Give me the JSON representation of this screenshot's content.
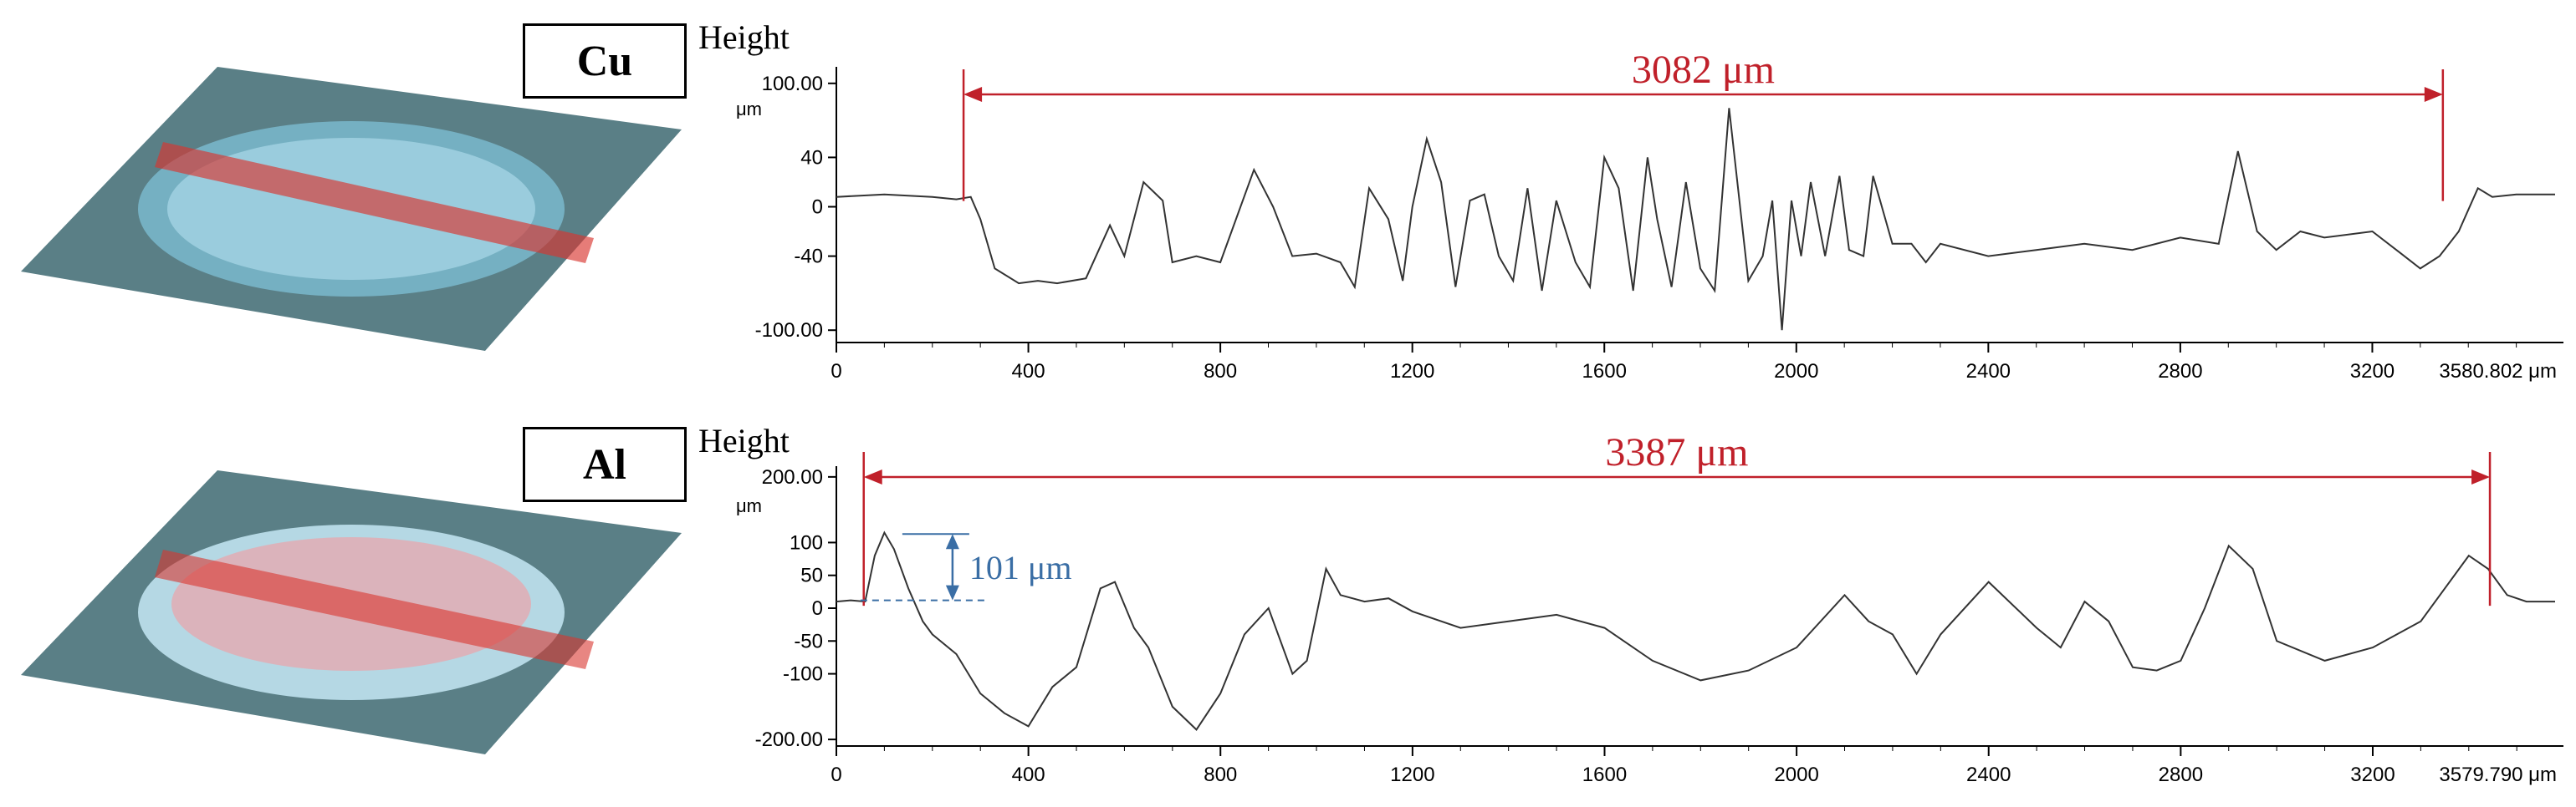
{
  "panels": [
    {
      "material": "Cu",
      "thumbnail_icon": "3d-surface-scan-cu-icon",
      "chart_data": {
        "type": "line",
        "title": "",
        "ylabel": "Height",
        "yunit": "μm",
        "xlabel": "",
        "ylim": [
          -110,
          110
        ],
        "xlim": [
          0,
          3580.802
        ],
        "yticks": [
          "100.00",
          "40",
          "0",
          "-40",
          "-100.00"
        ],
        "ytick_values": [
          100,
          40,
          0,
          -40,
          -100
        ],
        "xticks": [
          "0",
          "400",
          "800",
          "1200",
          "1600",
          "2000",
          "2400",
          "2800",
          "3200",
          "3580.802 μm"
        ],
        "xtick_values": [
          0,
          400,
          800,
          1200,
          1600,
          2000,
          2400,
          2800,
          3200,
          3580.802
        ],
        "series": [
          {
            "x": [
              0,
              100,
              200,
              250,
              280,
              300,
              330,
              380,
              420,
              460,
              520,
              570,
              600,
              640,
              680,
              700,
              750,
              800,
              870,
              910,
              950,
              1000,
              1050,
              1080,
              1110,
              1150,
              1180,
              1200,
              1230,
              1260,
              1290,
              1320,
              1350,
              1380,
              1410,
              1440,
              1470,
              1500,
              1540,
              1570,
              1600,
              1630,
              1660,
              1690,
              1710,
              1740,
              1770,
              1800,
              1830,
              1860,
              1880,
              1900,
              1930,
              1950,
              1970,
              1990,
              2010,
              2030,
              2060,
              2090,
              2110,
              2140,
              2160,
              2200,
              2240,
              2270,
              2300,
              2400,
              2500,
              2600,
              2700,
              2800,
              2880,
              2920,
              2960,
              3000,
              3050,
              3100,
              3200,
              3260,
              3300,
              3340,
              3380,
              3420,
              3450,
              3500,
              3580.802
            ],
            "y": [
              8,
              10,
              8,
              6,
              8,
              -10,
              -50,
              -62,
              -60,
              -62,
              -58,
              -15,
              -40,
              20,
              5,
              -45,
              -40,
              -45,
              30,
              0,
              -40,
              -38,
              -45,
              -65,
              15,
              -10,
              -60,
              0,
              55,
              20,
              -65,
              5,
              10,
              -40,
              -60,
              15,
              -68,
              5,
              -45,
              -65,
              40,
              15,
              -68,
              40,
              -10,
              -65,
              20,
              -50,
              -68,
              80,
              10,
              -60,
              -40,
              5,
              -100,
              5,
              -40,
              20,
              -40,
              25,
              -35,
              -40,
              25,
              -30,
              -30,
              -45,
              -30,
              -40,
              -35,
              -30,
              -35,
              -25,
              -30,
              45,
              -20,
              -35,
              -20,
              -25,
              -20,
              -38,
              -50,
              -40,
              -20,
              15,
              8,
              10,
              10
            ]
          }
        ],
        "annotations": [
          {
            "type": "span",
            "label": "3082 μm",
            "x1": 265,
            "x2": 3347
          }
        ]
      }
    },
    {
      "material": "Al",
      "thumbnail_icon": "3d-surface-scan-al-icon",
      "chart_data": {
        "type": "line",
        "title": "",
        "ylabel": "Height",
        "yunit": "μm",
        "xlabel": "",
        "ylim": [
          -210,
          210
        ],
        "xlim": [
          0,
          3579.79
        ],
        "yticks": [
          "200.00",
          "100",
          "50",
          "0",
          "-50",
          "-100",
          "-200.00"
        ],
        "ytick_values": [
          200,
          100,
          50,
          0,
          -50,
          -100,
          -200
        ],
        "xticks": [
          "0",
          "400",
          "800",
          "1200",
          "1600",
          "2000",
          "2400",
          "2800",
          "3200",
          "3579.790 μm"
        ],
        "xtick_values": [
          0,
          400,
          800,
          1200,
          1600,
          2000,
          2400,
          2800,
          3200,
          3579.79
        ],
        "series": [
          {
            "x": [
              0,
              30,
              60,
              80,
              100,
              120,
              150,
              180,
              200,
              250,
              300,
              350,
              400,
              450,
              500,
              550,
              580,
              620,
              650,
              700,
              750,
              800,
              850,
              900,
              950,
              980,
              1020,
              1050,
              1100,
              1150,
              1200,
              1300,
              1400,
              1500,
              1600,
              1700,
              1800,
              1900,
              2000,
              2100,
              2150,
              2200,
              2250,
              2300,
              2400,
              2500,
              2550,
              2600,
              2650,
              2700,
              2750,
              2800,
              2850,
              2900,
              2950,
              3000,
              3100,
              3200,
              3300,
              3400,
              3440,
              3480,
              3520,
              3579.79
            ],
            "y": [
              10,
              12,
              10,
              80,
              115,
              90,
              30,
              -20,
              -40,
              -70,
              -130,
              -160,
              -180,
              -120,
              -90,
              30,
              40,
              -30,
              -60,
              -150,
              -185,
              -130,
              -40,
              0,
              -100,
              -80,
              60,
              20,
              10,
              15,
              -5,
              -30,
              -20,
              -10,
              -30,
              -80,
              -110,
              -95,
              -60,
              20,
              -20,
              -40,
              -100,
              -40,
              40,
              -30,
              -60,
              10,
              -20,
              -90,
              -95,
              -80,
              0,
              95,
              60,
              -50,
              -80,
              -60,
              -20,
              80,
              60,
              20,
              10,
              10
            ]
          }
        ],
        "annotations": [
          {
            "type": "span",
            "label": "3387 μm",
            "x1": 57,
            "x2": 3444
          },
          {
            "type": "peak-height",
            "label": "101 μm",
            "x": 120,
            "y_base": 12,
            "y_top": 113
          }
        ]
      }
    }
  ]
}
